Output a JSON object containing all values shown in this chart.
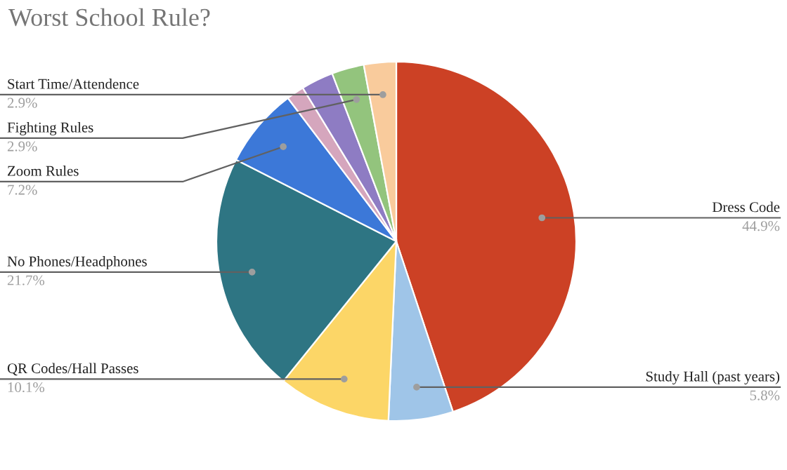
{
  "chart_data": {
    "type": "pie",
    "title": "Worst School Rule?",
    "categories": [
      "Dress Code",
      "Study Hall (past years)",
      "QR Codes/Hall Passes",
      "No Phones/Headphones",
      "Zoom Rules",
      null,
      null,
      "Fighting Rules",
      "Start Time/Attendence"
    ],
    "values": [
      44.9,
      5.8,
      10.1,
      21.7,
      7.2,
      1.6,
      2.9,
      2.9,
      2.9
    ],
    "value_labels": [
      "44.9%",
      "5.8%",
      "10.1%",
      "21.7%",
      "7.2%",
      null,
      null,
      "2.9%",
      "2.9%"
    ],
    "colors": [
      "#cc4125",
      "#9fc5e8",
      "#fcd667",
      "#2e7583",
      "#3c78d8",
      "#d5a6bd",
      "#8e7cc3",
      "#93c47d",
      "#f9cb9c"
    ]
  }
}
